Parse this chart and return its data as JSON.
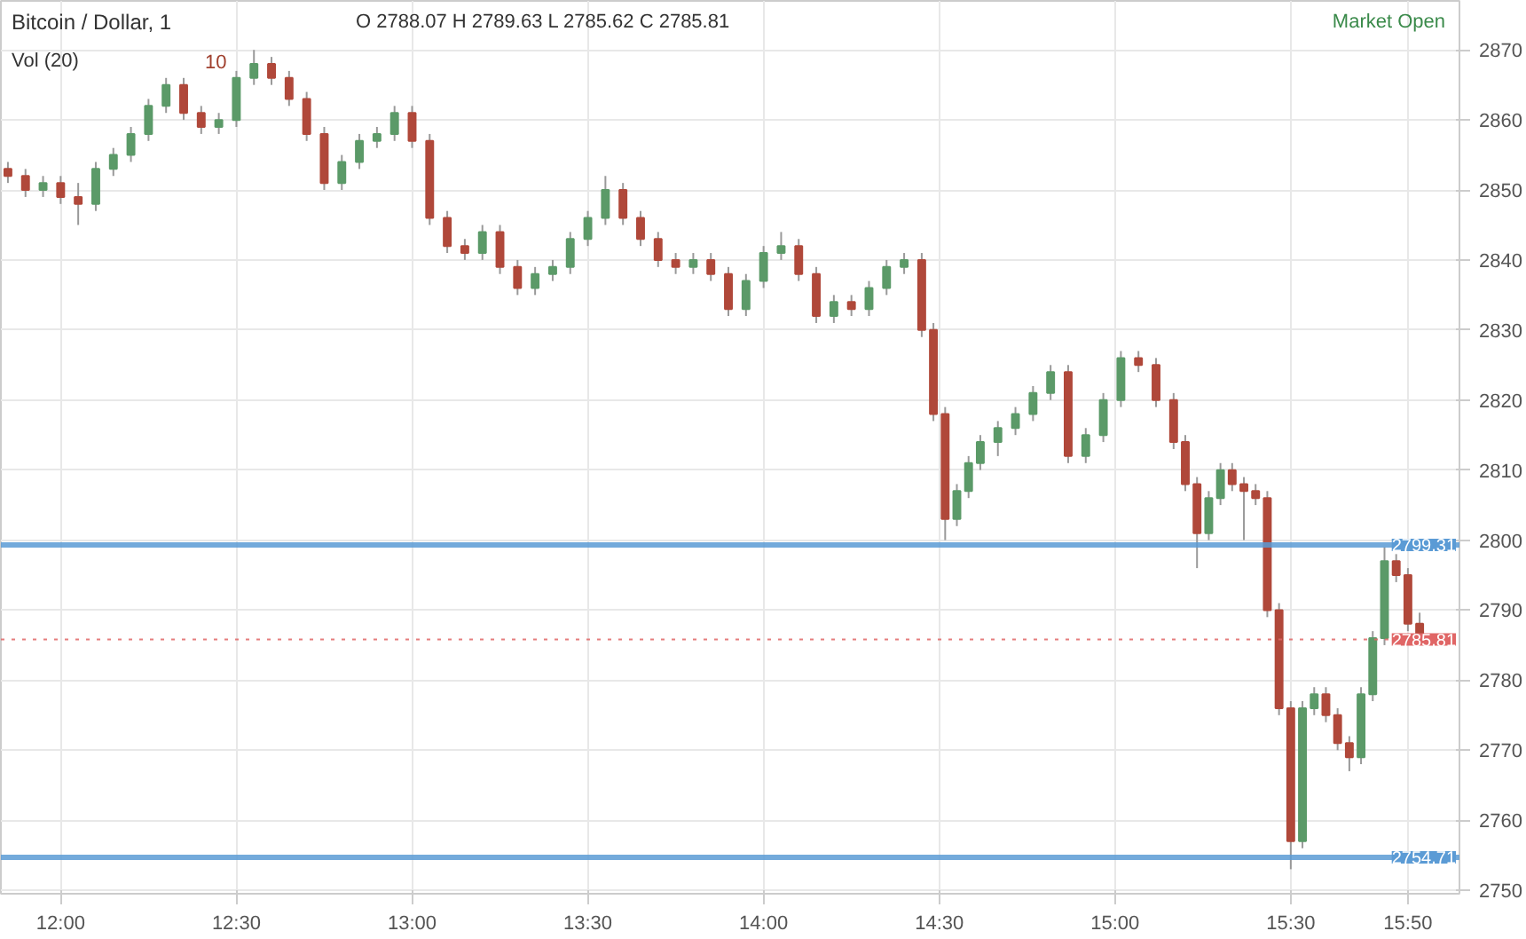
{
  "chart_data": {
    "type": "candlestick",
    "title": "Bitcoin / Dollar, 1",
    "annotations": [
      "O 2788.07 H 2789.63 L 2785.62 C 2785.81",
      "Vol (20)",
      "10",
      "Market Open"
    ],
    "x": [
      11.85,
      11.9,
      11.95,
      12,
      12.05,
      12.1,
      12.15,
      12.2,
      12.25,
      12.3,
      12.35,
      12.4,
      12.45,
      12.5,
      12.55,
      12.6,
      12.65,
      12.7,
      12.75,
      12.8,
      12.85,
      12.9,
      12.95,
      13,
      13.05,
      13.1,
      13.15,
      13.2,
      13.25,
      13.3,
      13.35,
      13.4,
      13.45,
      13.5,
      13.55,
      13.6,
      13.65,
      13.7,
      13.75,
      13.8,
      13.85,
      13.9,
      13.95,
      14,
      14.05,
      14.1,
      14.15,
      14.2,
      14.25,
      14.3,
      14.35,
      14.4,
      14.45,
      14.4833,
      14.5167,
      14.55,
      14.5833,
      14.6167,
      14.6667,
      14.7167,
      14.7667,
      14.8167,
      14.8667,
      14.9167,
      14.9667,
      15.0167,
      15.0667,
      15.1167,
      15.1667,
      15.2,
      15.2333,
      15.2667,
      15.3,
      15.3333,
      15.3667,
      15.4,
      15.4333,
      15.4667,
      15.5,
      15.5333,
      15.5667,
      15.6,
      15.6333,
      15.6667,
      15.7,
      15.7333,
      15.7667,
      15.8,
      15.8333,
      15.8667
    ],
    "ohlc": [
      [
        2853,
        2854,
        2851,
        2852
      ],
      [
        2852,
        2853,
        2849,
        2850
      ],
      [
        2850,
        2852,
        2849,
        2851
      ],
      [
        2851,
        2852,
        2848,
        2849
      ],
      [
        2849,
        2851,
        2845,
        2848
      ],
      [
        2848,
        2854,
        2847,
        2853
      ],
      [
        2853,
        2856,
        2852,
        2855
      ],
      [
        2855,
        2859,
        2854,
        2858
      ],
      [
        2858,
        2863,
        2857,
        2862
      ],
      [
        2862,
        2866,
        2861,
        2865
      ],
      [
        2865,
        2866,
        2860,
        2861
      ],
      [
        2861,
        2862,
        2858,
        2859
      ],
      [
        2859,
        2861,
        2858,
        2860
      ],
      [
        2860,
        2867,
        2859,
        2866
      ],
      [
        2866,
        2870,
        2865,
        2868
      ],
      [
        2868,
        2869,
        2865,
        2866
      ],
      [
        2866,
        2867,
        2862,
        2863
      ],
      [
        2863,
        2864,
        2857,
        2858
      ],
      [
        2858,
        2859,
        2850,
        2851
      ],
      [
        2851,
        2855,
        2850,
        2854
      ],
      [
        2854,
        2858,
        2853,
        2857
      ],
      [
        2857,
        2859,
        2856,
        2858
      ],
      [
        2858,
        2862,
        2857,
        2861
      ],
      [
        2861,
        2862,
        2856,
        2857
      ],
      [
        2857,
        2858,
        2845,
        2846
      ],
      [
        2846,
        2847,
        2841,
        2842
      ],
      [
        2842,
        2843,
        2840,
        2841
      ],
      [
        2841,
        2845,
        2840,
        2844
      ],
      [
        2844,
        2845,
        2838,
        2839
      ],
      [
        2839,
        2840,
        2835,
        2836
      ],
      [
        2836,
        2839,
        2835,
        2838
      ],
      [
        2838,
        2840,
        2837,
        2839
      ],
      [
        2839,
        2844,
        2838,
        2843
      ],
      [
        2843,
        2847,
        2842,
        2846
      ],
      [
        2846,
        2852,
        2845,
        2850
      ],
      [
        2850,
        2851,
        2845,
        2846
      ],
      [
        2846,
        2847,
        2842,
        2843
      ],
      [
        2843,
        2844,
        2839,
        2840
      ],
      [
        2840,
        2841,
        2838,
        2839
      ],
      [
        2839,
        2841,
        2838,
        2840
      ],
      [
        2840,
        2841,
        2837,
        2838
      ],
      [
        2838,
        2839,
        2832,
        2833
      ],
      [
        2833,
        2838,
        2832,
        2837
      ],
      [
        2837,
        2842,
        2836,
        2841
      ],
      [
        2841,
        2844,
        2840,
        2842
      ],
      [
        2842,
        2843,
        2837,
        2838
      ],
      [
        2838,
        2839,
        2831,
        2832
      ],
      [
        2832,
        2835,
        2831,
        2834
      ],
      [
        2834,
        2835,
        2832,
        2833
      ],
      [
        2833,
        2837,
        2832,
        2836
      ],
      [
        2836,
        2840,
        2835,
        2839
      ],
      [
        2839,
        2841,
        2838,
        2840
      ],
      [
        2840,
        2841,
        2829,
        2830
      ],
      [
        2830,
        2831,
        2817,
        2818
      ],
      [
        2818,
        2819,
        2800,
        2803
      ],
      [
        2803,
        2808,
        2802,
        2807
      ],
      [
        2807,
        2812,
        2806,
        2811
      ],
      [
        2811,
        2815,
        2810,
        2814
      ],
      [
        2814,
        2817,
        2812,
        2816
      ],
      [
        2816,
        2819,
        2815,
        2818
      ],
      [
        2818,
        2822,
        2817,
        2821
      ],
      [
        2821,
        2825,
        2820,
        2824
      ],
      [
        2824,
        2825,
        2811,
        2812
      ],
      [
        2812,
        2816,
        2811,
        2815
      ],
      [
        2815,
        2821,
        2814,
        2820
      ],
      [
        2820,
        2827,
        2819,
        2826
      ],
      [
        2826,
        2827,
        2824,
        2825
      ],
      [
        2825,
        2826,
        2819,
        2820
      ],
      [
        2820,
        2821,
        2813,
        2814
      ],
      [
        2814,
        2815,
        2807,
        2808
      ],
      [
        2808,
        2809,
        2796,
        2801
      ],
      [
        2801,
        2807,
        2800,
        2806
      ],
      [
        2806,
        2811,
        2805,
        2810
      ],
      [
        2810,
        2811,
        2807,
        2808
      ],
      [
        2808,
        2809,
        2800,
        2807
      ],
      [
        2807,
        2808,
        2805,
        2806
      ],
      [
        2806,
        2807,
        2789,
        2790
      ],
      [
        2790,
        2791,
        2775,
        2776
      ],
      [
        2776,
        2777,
        2753,
        2757
      ],
      [
        2757,
        2777,
        2756,
        2776
      ],
      [
        2776,
        2779,
        2775,
        2778
      ],
      [
        2778,
        2779,
        2774,
        2775
      ],
      [
        2775,
        2776,
        2770,
        2771
      ],
      [
        2771,
        2772,
        2767,
        2769
      ],
      [
        2769,
        2779,
        2768,
        2778
      ],
      [
        2778,
        2787,
        2777,
        2786
      ],
      [
        2786,
        2799,
        2785,
        2797
      ],
      [
        2797,
        2798,
        2794,
        2795
      ],
      [
        2795,
        2796,
        2787,
        2788.07
      ],
      [
        2788.07,
        2789.63,
        2785.62,
        2785.81
      ]
    ],
    "colors": [
      "#b0483a",
      "#b0483a",
      "#5b9a68",
      "#b0483a",
      "#b0483a",
      "#5b9a68",
      "#5b9a68",
      "#5b9a68",
      "#5b9a68",
      "#5b9a68",
      "#b0483a",
      "#b0483a",
      "#5b9a68",
      "#5b9a68",
      "#5b9a68",
      "#b0483a",
      "#b0483a",
      "#b0483a",
      "#b0483a",
      "#5b9a68",
      "#5b9a68",
      "#5b9a68",
      "#5b9a68",
      "#b0483a",
      "#b0483a",
      "#b0483a",
      "#b0483a",
      "#5b9a68",
      "#b0483a",
      "#b0483a",
      "#5b9a68",
      "#5b9a68",
      "#5b9a68",
      "#5b9a68",
      "#5b9a68",
      "#b0483a",
      "#b0483a",
      "#b0483a",
      "#b0483a",
      "#5b9a68",
      "#b0483a",
      "#b0483a",
      "#5b9a68",
      "#5b9a68",
      "#5b9a68",
      "#b0483a",
      "#b0483a",
      "#5b9a68",
      "#b0483a",
      "#5b9a68",
      "#5b9a68",
      "#5b9a68",
      "#b0483a",
      "#b0483a",
      "#b0483a",
      "#5b9a68",
      "#5b9a68",
      "#5b9a68",
      "#5b9a68",
      "#5b9a68",
      "#5b9a68",
      "#5b9a68",
      "#b0483a",
      "#5b9a68",
      "#5b9a68",
      "#5b9a68",
      "#b0483a",
      "#b0483a",
      "#b0483a",
      "#b0483a",
      "#b0483a",
      "#5b9a68",
      "#5b9a68",
      "#b0483a",
      "#b0483a",
      "#b0483a",
      "#b0483a",
      "#b0483a",
      "#b0483a",
      "#5b9a68",
      "#5b9a68",
      "#b0483a",
      "#b0483a",
      "#b0483a",
      "#5b9a68",
      "#5b9a68",
      "#5b9a68",
      "#b0483a",
      "#b0483a",
      "#b0483a"
    ],
    "xlim": [
      11.83,
      15.98
    ],
    "ylim": [
      2749.5,
      2877
    ],
    "xticks": [
      {
        "value": 12,
        "label": "12:00"
      },
      {
        "value": 12.5,
        "label": "12:30"
      },
      {
        "value": 13,
        "label": "13:00"
      },
      {
        "value": 13.5,
        "label": "13:30"
      },
      {
        "value": 14,
        "label": "14:00"
      },
      {
        "value": 14.5,
        "label": "14:30"
      },
      {
        "value": 15,
        "label": "15:00"
      },
      {
        "value": 15.5,
        "label": "15:30"
      },
      {
        "value": 15.8333,
        "label": "15:50"
      }
    ],
    "yticks": [
      2750,
      2760,
      2770,
      2780,
      2790,
      2800,
      2810,
      2820,
      2830,
      2840,
      2850,
      2860,
      2870
    ],
    "ref_lines": [
      {
        "axis": "y",
        "value": 2799.31,
        "label": "2799.31",
        "color": "#5b9bd5",
        "line_style": "solid"
      },
      {
        "axis": "y",
        "value": 2754.71,
        "label": "2754.71",
        "color": "#5b9bd5",
        "line_style": "solid"
      },
      {
        "axis": "y",
        "value": 2785.81,
        "label": "2785.81",
        "color": "#e06666",
        "line_style": "dotted"
      }
    ],
    "grid": true
  }
}
